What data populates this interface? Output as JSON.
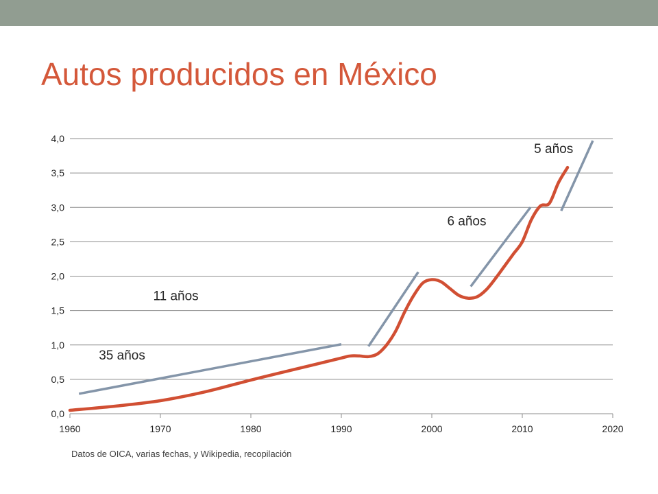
{
  "slide": {
    "title": "Autos producidos en México",
    "source_note": "Datos de OICA, varias fechas, y Wikipedia, recopilación",
    "colors": {
      "top_bar": "#919d91",
      "title": "#d4583a",
      "production_line": "#d14f33",
      "trend_lines": "#8495a9",
      "gridlines": "#8c8c8c",
      "text": "#262626"
    }
  },
  "chart_data": {
    "type": "line",
    "xlim": [
      1960,
      2020
    ],
    "ylim": [
      0,
      4
    ],
    "x_ticks": [
      1960,
      1970,
      1980,
      1990,
      2000,
      2010,
      2020
    ],
    "y_ticks": [
      "0,0",
      "0,5",
      "1,0",
      "1,5",
      "2,0",
      "2,5",
      "3,0",
      "3,5",
      "4,0"
    ],
    "y_tick_values": [
      0,
      0.5,
      1,
      1.5,
      2,
      2.5,
      3,
      3.5,
      4
    ],
    "grid": "horizontal",
    "series": [
      {
        "values_x": [
          1960,
          1965,
          1970,
          1975,
          1980,
          1985,
          1990,
          1991,
          1992,
          1993,
          1994,
          1995,
          1996,
          1997,
          1998,
          1999,
          2000,
          2001,
          2002,
          2003,
          2004,
          2005,
          2006,
          2007,
          2008,
          2009,
          2010,
          2011,
          2012,
          2013,
          2014,
          2015
        ],
        "values_y": [
          0.05,
          0.11,
          0.19,
          0.32,
          0.49,
          0.65,
          0.81,
          0.84,
          0.84,
          0.83,
          0.87,
          1.0,
          1.2,
          1.48,
          1.72,
          1.9,
          1.95,
          1.92,
          1.82,
          1.72,
          1.68,
          1.7,
          1.8,
          1.96,
          2.14,
          2.32,
          2.5,
          2.82,
          3.02,
          3.06,
          3.36,
          3.58
        ]
      }
    ],
    "trend_lines": [
      {
        "label": "35 años",
        "from": [
          1961,
          0.29
        ],
        "to": [
          1990,
          1.01
        ]
      },
      {
        "label": "11 años",
        "from": [
          1993,
          0.98
        ],
        "to": [
          1998.5,
          2.06
        ]
      },
      {
        "label": "6 años",
        "from": [
          2004.3,
          1.85
        ],
        "to": [
          2010.9,
          3.0
        ]
      },
      {
        "label": "5 años",
        "from": [
          2014.3,
          2.95
        ],
        "to": [
          2017.8,
          3.97
        ]
      }
    ],
    "annotations": [
      {
        "text": "35 años",
        "x": 1963.2,
        "y": 0.79
      },
      {
        "text": "11 años",
        "x": 1969.2,
        "y": 1.65
      },
      {
        "text": "6 años",
        "x": 2001.7,
        "y": 2.74
      },
      {
        "text": "5 años",
        "x": 2011.3,
        "y": 3.79
      }
    ]
  }
}
